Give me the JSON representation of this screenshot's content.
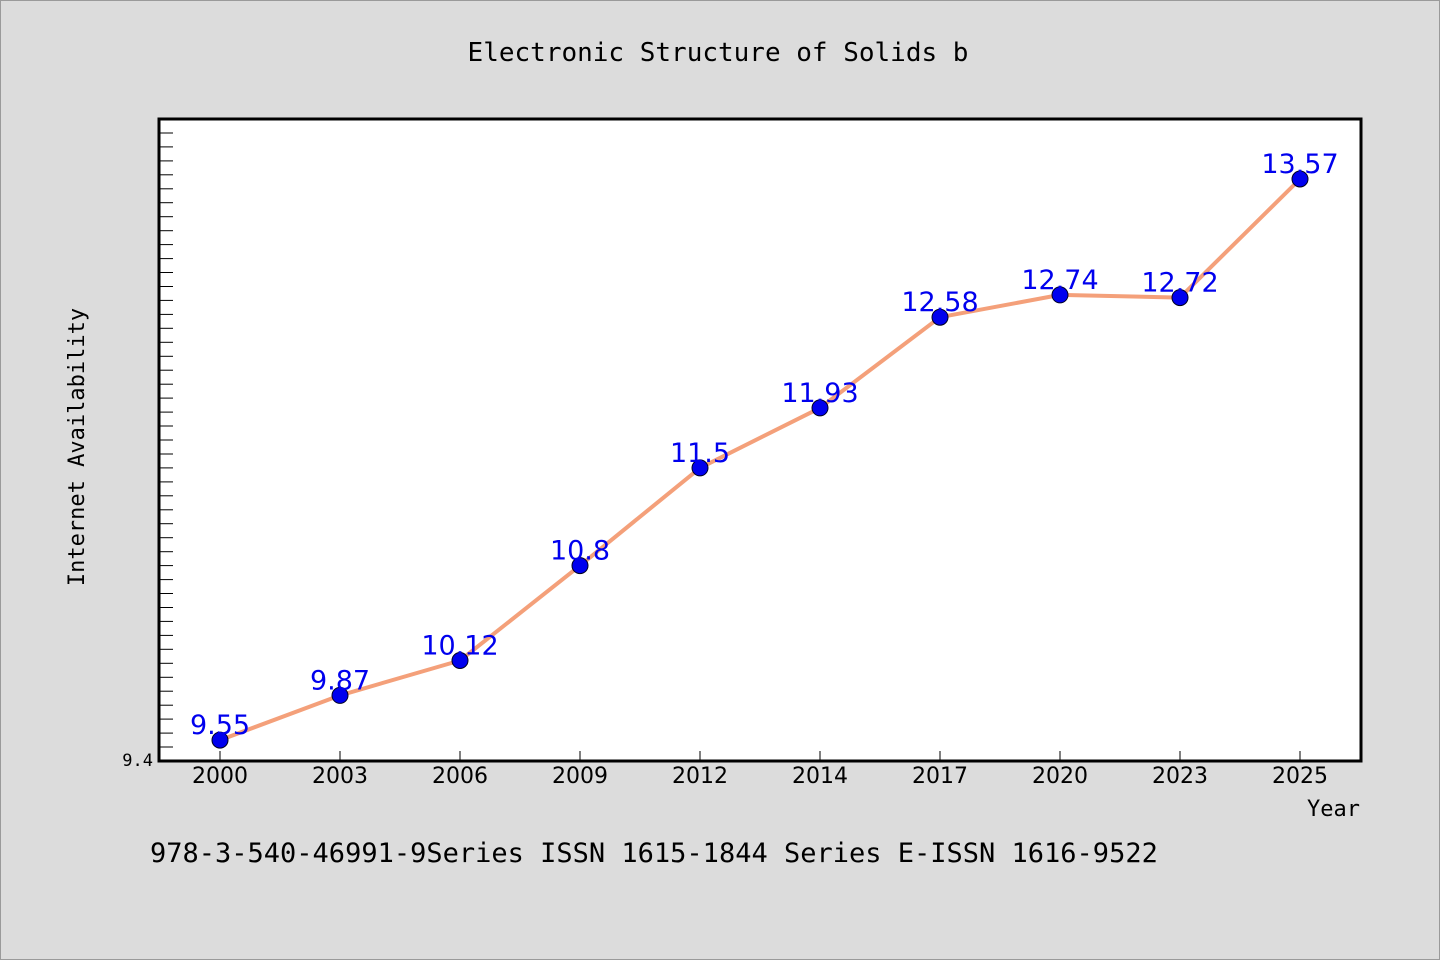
{
  "chart_data": {
    "type": "line",
    "title": "Electronic Structure of Solids b",
    "xlabel": "Year",
    "ylabel": "Internet Availability",
    "categories": [
      "2000",
      "2003",
      "2006",
      "2009",
      "2012",
      "2014",
      "2017",
      "2020",
      "2023",
      "2025"
    ],
    "series": [
      {
        "values": [
          9.55,
          9.87,
          10.12,
          10.8,
          11.5,
          11.93,
          12.58,
          12.74,
          12.72,
          13.57
        ],
        "labels": [
          "9.55",
          "9.87",
          "10.12",
          "10.8",
          "11.5",
          "11.93",
          "12.58",
          "12.74",
          "12.72",
          "13.57"
        ],
        "line_color": "#f4a07a",
        "marker_color": "#0000ee"
      }
    ],
    "ylim": [
      9.4,
      14.0
    ],
    "ytick_labels": [
      "9.4"
    ],
    "grid": false,
    "legend": "none"
  },
  "footer": "978-3-540-46991-9Series ISSN 1615-1844 Series E-ISSN 1616-9522",
  "colors": {
    "background": "#dcdcdc",
    "plot_background": "#ffffff",
    "line": "#f4a07a",
    "marker": "#0000ee",
    "data_label": "#0000ee"
  }
}
